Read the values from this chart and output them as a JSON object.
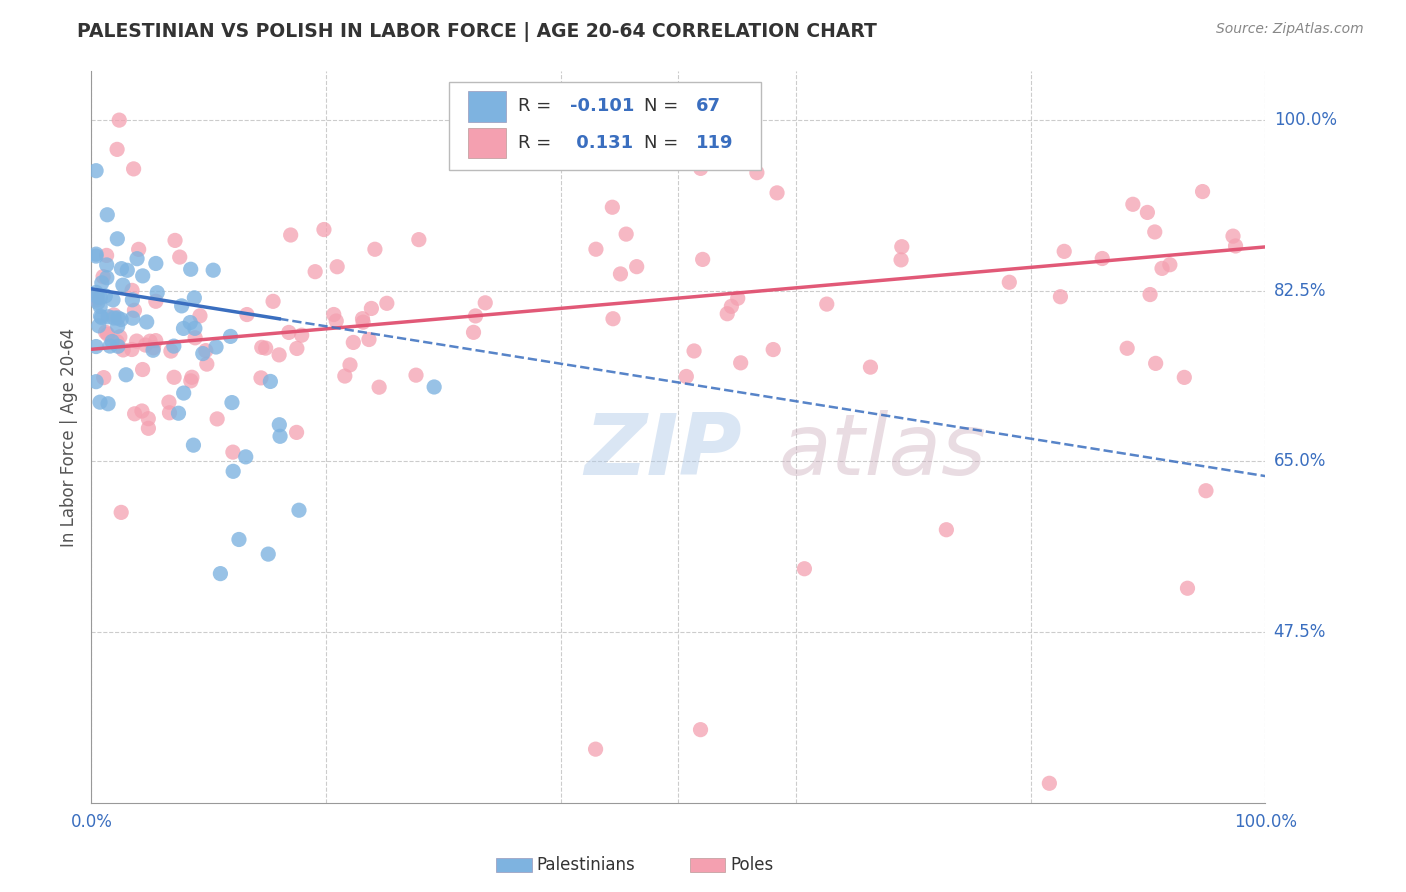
{
  "title": "PALESTINIAN VS POLISH IN LABOR FORCE | AGE 20-64 CORRELATION CHART",
  "source": "Source: ZipAtlas.com",
  "ylabel": "In Labor Force | Age 20-64",
  "xlim": [
    0.0,
    1.0
  ],
  "ylim": [
    0.3,
    1.05
  ],
  "palestinians_R": -0.101,
  "palestinians_N": 67,
  "poles_R": 0.131,
  "poles_N": 119,
  "pal_color": "#7EB3E0",
  "pole_color": "#F4A0B0",
  "pal_line_color": "#3A6EBF",
  "pole_line_color": "#E05070",
  "watermark_zip": "ZIP",
  "watermark_atlas": "atlas",
  "background_color": "#ffffff",
  "grid_color": "#cccccc",
  "title_color": "#333333",
  "label_color": "#3A6EBF",
  "y_tick_values": [
    1.0,
    0.825,
    0.65,
    0.475
  ],
  "y_tick_labels": [
    "100.0%",
    "82.5%",
    "65.0%",
    "47.5%"
  ],
  "pal_trend_start_y": 0.827,
  "pal_trend_end_y": 0.635,
  "pole_trend_start_y": 0.765,
  "pole_trend_end_y": 0.87
}
